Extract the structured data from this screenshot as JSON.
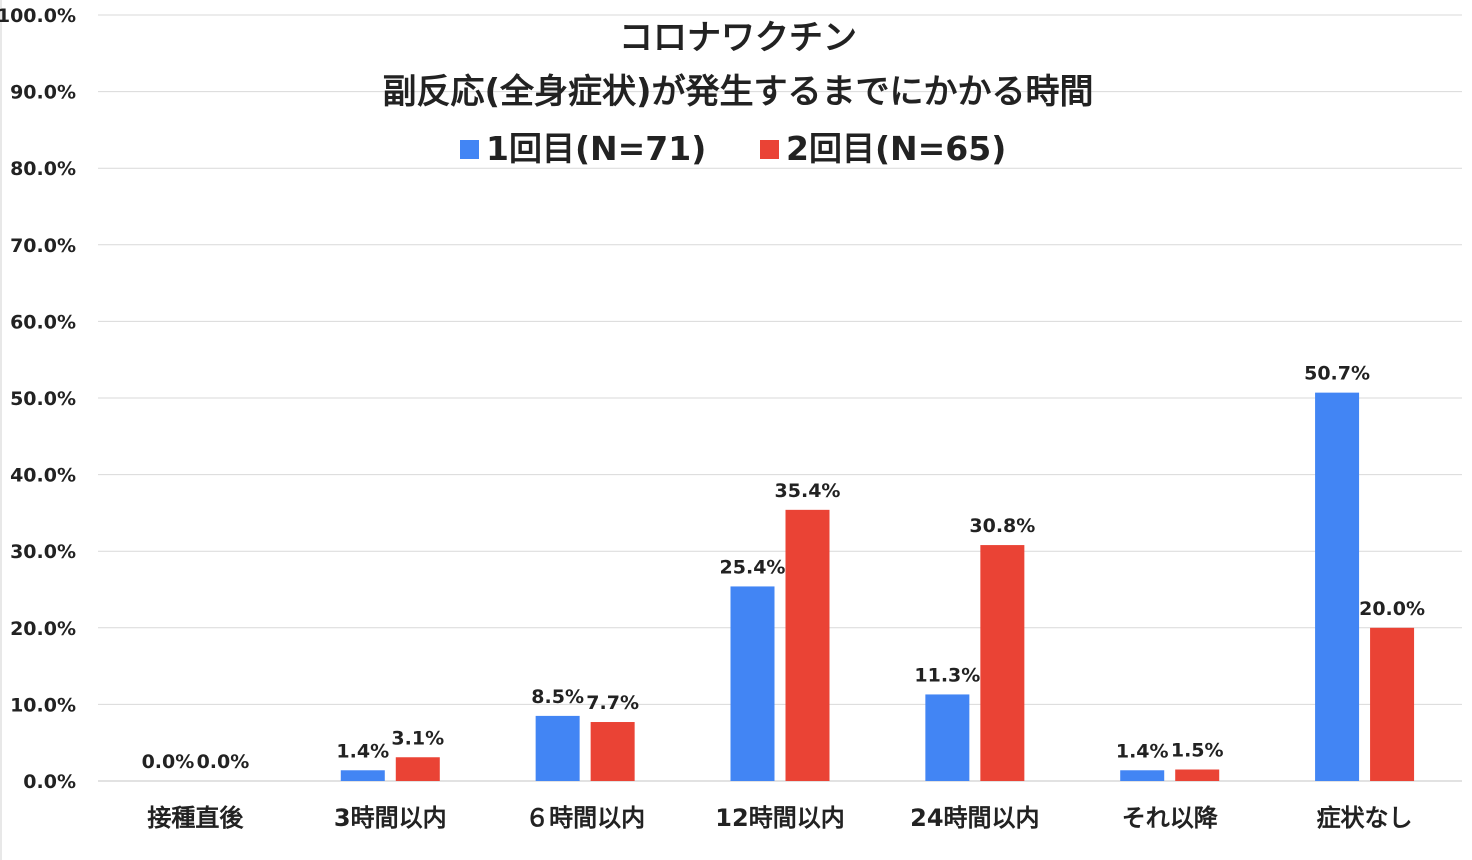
{
  "chart_data": {
    "type": "bar",
    "title": [
      "コロナワクチン",
      "副反応(全身症状)が発生するまでにかかる時間"
    ],
    "categories": [
      "接種直後",
      "3時間以内",
      "６時間以内",
      "12時間以内",
      "24時間以内",
      "それ以降",
      "症状なし"
    ],
    "series": [
      {
        "name": "1回目(N=71)",
        "color": "#4285f4",
        "values": [
          0.0,
          1.4,
          8.5,
          25.4,
          11.3,
          1.4,
          50.7
        ],
        "labels": [
          "0.0%",
          "1.4%",
          "8.5%",
          "25.4%",
          "11.3%",
          "1.4%",
          "50.7%"
        ]
      },
      {
        "name": "2回目(N=65)",
        "color": "#ea4335",
        "values": [
          0.0,
          3.1,
          7.7,
          35.4,
          30.8,
          1.5,
          20.0
        ],
        "labels": [
          "0.0%",
          "3.1%",
          "7.7%",
          "35.4%",
          "30.8%",
          "1.5%",
          "20.0%"
        ]
      }
    ],
    "ylim": [
      0,
      100
    ],
    "yticks": [
      "0.0%",
      "10.0%",
      "20.0%",
      "30.0%",
      "40.0%",
      "50.0%",
      "60.0%",
      "70.0%",
      "80.0%",
      "90.0%",
      "100.0%"
    ],
    "grid": true,
    "legend_position": "top-center"
  }
}
